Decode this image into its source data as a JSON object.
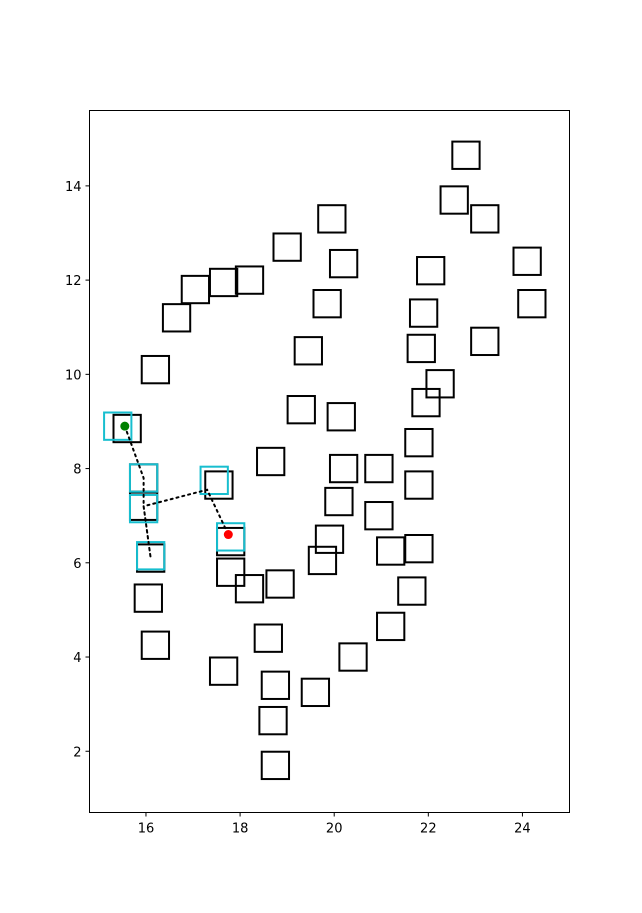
{
  "chart_data": {
    "type": "scatter",
    "title": "",
    "xlabel": "",
    "ylabel": "",
    "xlim": [
      14.8,
      25.0
    ],
    "ylim": [
      0.7,
      15.6
    ],
    "xticks": [
      16,
      18,
      20,
      22,
      24
    ],
    "yticks": [
      2,
      4,
      6,
      8,
      10,
      12,
      14
    ],
    "grid": false,
    "colors": {
      "obstacle": "#000000",
      "visited": "#17BECF",
      "path": "#000000",
      "start": "#008000",
      "goal": "#FF0000"
    },
    "obstacle_size": 0.58,
    "obstacles": [
      [
        22.8,
        14.65
      ],
      [
        22.55,
        13.7
      ],
      [
        23.2,
        13.3
      ],
      [
        19.95,
        13.3
      ],
      [
        19.0,
        12.7
      ],
      [
        20.2,
        12.35
      ],
      [
        24.1,
        12.4
      ],
      [
        22.05,
        12.2
      ],
      [
        18.2,
        12.0
      ],
      [
        17.65,
        11.95
      ],
      [
        17.05,
        11.8
      ],
      [
        24.2,
        11.5
      ],
      [
        19.85,
        11.5
      ],
      [
        21.9,
        11.3
      ],
      [
        16.65,
        11.2
      ],
      [
        23.2,
        10.7
      ],
      [
        21.85,
        10.55
      ],
      [
        19.45,
        10.5
      ],
      [
        16.2,
        10.1
      ],
      [
        22.25,
        9.8
      ],
      [
        21.95,
        9.4
      ],
      [
        19.3,
        9.25
      ],
      [
        20.15,
        9.1
      ],
      [
        15.6,
        8.85
      ],
      [
        21.8,
        8.55
      ],
      [
        18.65,
        8.15
      ],
      [
        20.2,
        8.0
      ],
      [
        20.95,
        8.0
      ],
      [
        15.95,
        7.8
      ],
      [
        21.8,
        7.65
      ],
      [
        17.55,
        7.65
      ],
      [
        20.1,
        7.3
      ],
      [
        15.95,
        7.2
      ],
      [
        20.95,
        7.0
      ],
      [
        17.8,
        6.45
      ],
      [
        19.9,
        6.5
      ],
      [
        21.8,
        6.3
      ],
      [
        21.2,
        6.25
      ],
      [
        16.1,
        6.1
      ],
      [
        19.75,
        6.05
      ],
      [
        17.8,
        5.8
      ],
      [
        18.85,
        5.55
      ],
      [
        18.2,
        5.45
      ],
      [
        21.65,
        5.4
      ],
      [
        16.05,
        5.25
      ],
      [
        21.2,
        4.65
      ],
      [
        18.6,
        4.4
      ],
      [
        16.2,
        4.25
      ],
      [
        20.4,
        4.0
      ],
      [
        17.65,
        3.7
      ],
      [
        18.75,
        3.4
      ],
      [
        19.6,
        3.25
      ],
      [
        18.7,
        2.65
      ],
      [
        18.75,
        1.7
      ]
    ],
    "visited_cells": [
      [
        15.4,
        8.9
      ],
      [
        15.95,
        7.8
      ],
      [
        15.95,
        7.15
      ],
      [
        16.1,
        6.15
      ],
      [
        17.45,
        7.75
      ],
      [
        17.8,
        6.55
      ]
    ],
    "path": [
      [
        15.55,
        8.9
      ],
      [
        15.95,
        7.8
      ],
      [
        15.95,
        7.2
      ],
      [
        16.1,
        6.1
      ],
      [
        15.95,
        7.2
      ],
      [
        17.3,
        7.55
      ],
      [
        17.75,
        6.6
      ]
    ],
    "start": [
      15.55,
      8.9
    ],
    "goal": [
      17.75,
      6.6
    ]
  }
}
